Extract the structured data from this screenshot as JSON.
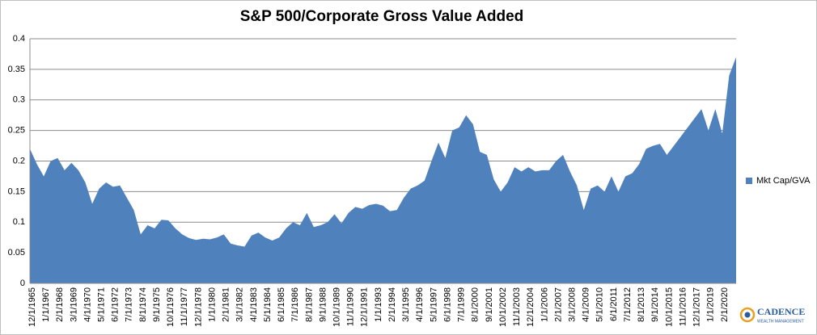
{
  "chart_data": {
    "type": "area",
    "title": "S&P 500/Corporate Gross Value Added",
    "categories": [
      "12/1/1965",
      null,
      "1/1/1967",
      null,
      "2/1/1968",
      null,
      "3/1/1969",
      null,
      "4/1/1970",
      null,
      "5/1/1971",
      null,
      "6/1/1972",
      null,
      "7/1/1973",
      null,
      "8/1/1974",
      null,
      "9/1/1975",
      null,
      "10/1/1976",
      null,
      "11/1/1977",
      null,
      "12/1/1978",
      null,
      "1/1/1980",
      null,
      "2/1/1981",
      null,
      "3/1/1982",
      null,
      "4/1/1983",
      null,
      "5/1/1984",
      null,
      "6/1/1985",
      null,
      "7/1/1986",
      null,
      "8/1/1987",
      null,
      "9/1/1988",
      null,
      "10/1/1989",
      null,
      "11/1/1990",
      null,
      "12/1/1991",
      null,
      "1/1/1993",
      null,
      "2/1/1994",
      null,
      "3/1/1995",
      null,
      "4/1/1996",
      null,
      "5/1/1997",
      null,
      "6/1/1998",
      null,
      "7/1/1999",
      null,
      "8/1/2000",
      null,
      "9/1/2001",
      null,
      "10/1/2002",
      null,
      "11/1/2003",
      null,
      "12/1/2004",
      null,
      "1/1/2006",
      null,
      "2/1/2007",
      null,
      "3/1/2008",
      null,
      "4/1/2009",
      null,
      "5/1/2010",
      null,
      "6/1/2011",
      null,
      "7/1/2012",
      null,
      "8/1/2013",
      null,
      "9/1/2014",
      null,
      "10/1/2015",
      null,
      "11/1/2016",
      null,
      "12/1/2017",
      null,
      "1/1/2019",
      null,
      "2/1/2020",
      null,
      null
    ],
    "series": [
      {
        "name": "Mkt Cap/GVA",
        "color": "#4f81bd",
        "values": [
          0.22,
          0.195,
          0.175,
          0.2,
          0.205,
          0.185,
          0.197,
          0.185,
          0.165,
          0.13,
          0.155,
          0.165,
          0.158,
          0.16,
          0.14,
          0.12,
          0.08,
          0.095,
          0.09,
          0.104,
          0.103,
          0.09,
          0.08,
          0.074,
          0.071,
          0.073,
          0.072,
          0.075,
          0.08,
          0.065,
          0.062,
          0.06,
          0.078,
          0.083,
          0.075,
          0.07,
          0.075,
          0.09,
          0.1,
          0.095,
          0.115,
          0.092,
          0.095,
          0.1,
          0.113,
          0.098,
          0.115,
          0.125,
          0.122,
          0.128,
          0.13,
          0.127,
          0.118,
          0.12,
          0.14,
          0.155,
          0.16,
          0.168,
          0.2,
          0.23,
          0.205,
          0.25,
          0.255,
          0.275,
          0.26,
          0.215,
          0.21,
          0.17,
          0.15,
          0.165,
          0.19,
          0.183,
          0.19,
          0.183,
          0.185,
          0.185,
          0.2,
          0.21,
          0.183,
          0.16,
          0.12,
          0.155,
          0.16,
          0.15,
          0.175,
          0.15,
          0.175,
          0.18,
          0.195,
          0.22,
          0.225,
          0.228,
          0.21,
          0.225,
          0.24,
          0.255,
          0.27,
          0.285,
          0.25,
          0.285,
          0.245,
          0.34,
          0.37
        ]
      }
    ],
    "ylim": [
      0,
      0.4
    ],
    "yticks": [
      0,
      0.05,
      0.1,
      0.15,
      0.2,
      0.25,
      0.3,
      0.35,
      0.4
    ],
    "grid": true,
    "legend": "right",
    "logo": {
      "name": "CADENCE",
      "tagline": "WEALTH MANAGEMENT"
    }
  }
}
